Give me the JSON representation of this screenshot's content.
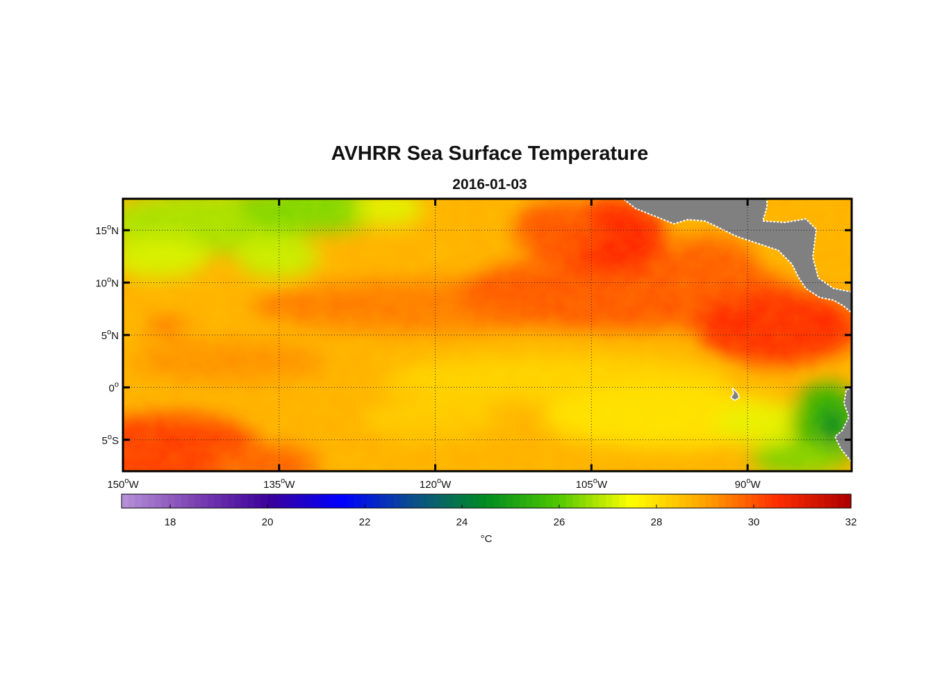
{
  "chart_data": {
    "type": "heatmap",
    "title": "AVHRR Sea Surface Temperature",
    "subtitle": "2016-01-03",
    "x_ticks": [
      {
        "value": -150,
        "label": "150",
        "suffix": "W"
      },
      {
        "value": -135,
        "label": "135",
        "suffix": "W"
      },
      {
        "value": -120,
        "label": "120",
        "suffix": "W"
      },
      {
        "value": -105,
        "label": "105",
        "suffix": "W"
      },
      {
        "value": -90,
        "label": "90",
        "suffix": "W"
      }
    ],
    "y_ticks": [
      {
        "value": 15,
        "label": "15",
        "suffix": "N"
      },
      {
        "value": 10,
        "label": "10",
        "suffix": "N"
      },
      {
        "value": 5,
        "label": "5",
        "suffix": "N"
      },
      {
        "value": 0,
        "label": "0",
        "suffix": ""
      },
      {
        "value": -5,
        "label": "5",
        "suffix": "S"
      }
    ],
    "lon_range": [
      -150,
      -80
    ],
    "lat_range": [
      -8,
      18
    ],
    "grid": true,
    "colorbar": {
      "min": 17,
      "max": 32,
      "ticks": [
        18,
        20,
        22,
        24,
        26,
        28,
        30,
        32
      ],
      "unit": "°C",
      "colors": [
        "#b48fd8",
        "#7a3fb0",
        "#3a009a",
        "#0000ff",
        "#0b4f8a",
        "#008c20",
        "#50c800",
        "#ffff00",
        "#ffa500",
        "#ff3000",
        "#b00000"
      ]
    },
    "land_color": "#808080"
  }
}
